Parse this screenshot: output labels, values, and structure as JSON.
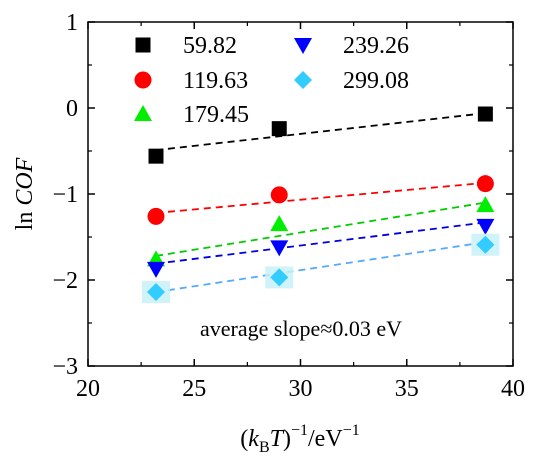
{
  "chart_data": {
    "type": "scatter",
    "xlim": [
      20,
      40
    ],
    "ylim": [
      -3,
      1
    ],
    "x_ticks": [
      20,
      25,
      30,
      35,
      40
    ],
    "y_ticks": [
      -3,
      -2,
      -1,
      0,
      1
    ],
    "x_tick_labels": [
      "20",
      "25",
      "30",
      "35",
      "40"
    ],
    "y_tick_labels": [
      "−3",
      "−2",
      "−1",
      "0",
      "1"
    ],
    "xlabel": {
      "prefix": "(",
      "k": "k",
      "sub": "B",
      "T": "T",
      "mid": ")",
      "sup1": "−1",
      "unit": "/eV",
      "sup2": "−1"
    },
    "ylabel": {
      "ln": "ln ",
      "cof": "COF"
    },
    "annotation": "average slope≈0.03 eV",
    "grid": false,
    "legend_position": "top",
    "fit": "dashed linear",
    "series": [
      {
        "name": "59.82",
        "marker": "square",
        "color": "#000000",
        "x": [
          23.2,
          29.0,
          38.7
        ],
        "y": [
          -0.56,
          -0.24,
          -0.07
        ]
      },
      {
        "name": "119.63",
        "marker": "circle",
        "color": "#ff0000",
        "x": [
          23.2,
          29.0,
          38.7
        ],
        "y": [
          -1.26,
          -1.01,
          -0.88
        ]
      },
      {
        "name": "179.45",
        "marker": "triangle-up",
        "color": "#00ee00",
        "x": [
          23.2,
          29.0,
          38.7
        ],
        "y": [
          -1.76,
          -1.35,
          -1.13
        ]
      },
      {
        "name": "239.26",
        "marker": "triangle-down",
        "color": "#0000ff",
        "x": [
          23.2,
          29.0,
          38.7
        ],
        "y": [
          -1.87,
          -1.62,
          -1.37
        ]
      },
      {
        "name": "299.08",
        "marker": "diamond",
        "color": "#33ccff",
        "x": [
          23.2,
          29.0,
          38.7
        ],
        "y": [
          -2.14,
          -1.97,
          -1.59
        ]
      }
    ],
    "fit_lines": [
      {
        "series": "59.82",
        "color": "#000000",
        "x": [
          23.2,
          38.7
        ],
        "y": [
          -0.49,
          -0.06
        ]
      },
      {
        "series": "119.63",
        "color": "#ff0000",
        "x": [
          23.2,
          38.7
        ],
        "y": [
          -1.22,
          -0.87
        ]
      },
      {
        "series": "179.45",
        "color": "#00cc00",
        "x": [
          23.2,
          38.7
        ],
        "y": [
          -1.72,
          -1.1
        ]
      },
      {
        "series": "239.26",
        "color": "#0000dd",
        "x": [
          23.2,
          38.7
        ],
        "y": [
          -1.81,
          -1.33
        ]
      },
      {
        "series": "299.08",
        "color": "#55aaff",
        "x": [
          23.2,
          38.7
        ],
        "y": [
          -2.14,
          -1.56
        ]
      }
    ]
  }
}
